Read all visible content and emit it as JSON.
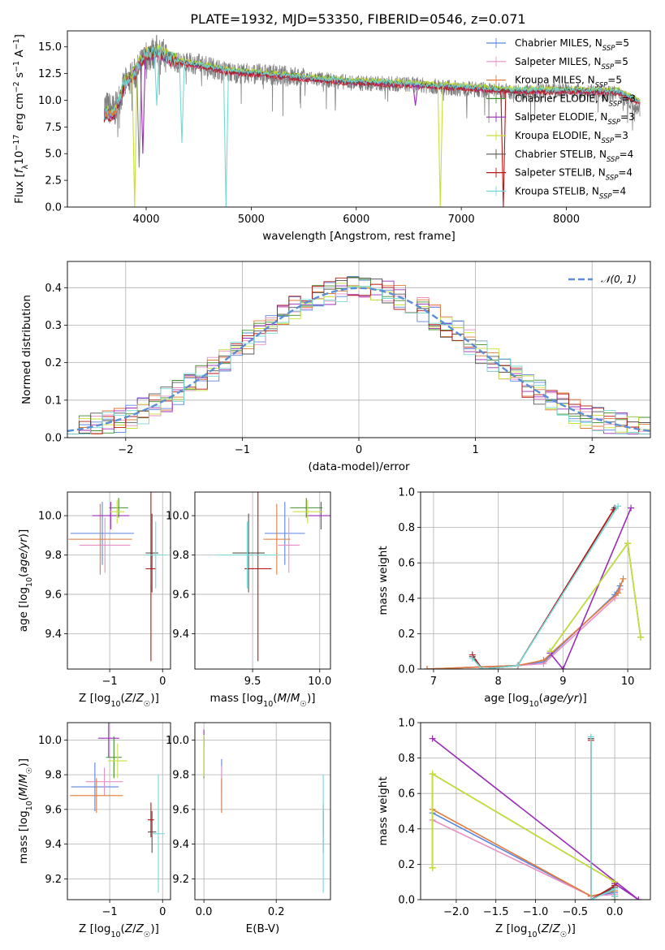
{
  "figure": {
    "title": "PLATE=1932, MJD=53350, FIBERID=0546, z=0.071"
  },
  "series": [
    {
      "name": "Chabrier MILES",
      "nssp": "5",
      "color": "#5b84e0"
    },
    {
      "name": "Salpeter MILES",
      "nssp": "5",
      "color": "#e88ec4"
    },
    {
      "name": "Kroupa MILES",
      "nssp": "5",
      "color": "#e07b39"
    },
    {
      "name": "Chabrier ELODIE",
      "nssp": "3",
      "color": "#3f8f2a"
    },
    {
      "name": "Salpeter ELODIE",
      "nssp": "3",
      "color": "#9b2db8"
    },
    {
      "name": "Kroupa ELODIE",
      "nssp": "3",
      "color": "#c6e038"
    },
    {
      "name": "Chabrier STELIB",
      "nssp": "4",
      "color": "#555555"
    },
    {
      "name": "Salpeter STELIB",
      "nssp": "4",
      "color": "#b81818"
    },
    {
      "name": "Kroupa STELIB",
      "nssp": "4",
      "color": "#74d9d6"
    }
  ],
  "legend_nssp_label": "N",
  "legend_nssp_sub": "SSP",
  "chart_data": [
    {
      "type": "line",
      "panel": "spectrum",
      "xlabel": "wavelength [Angstrom, rest frame]",
      "ylabel": "Flux [fλ 10^-17 erg cm^-2 s^-1 A^-1]",
      "xlim": [
        3250,
        8800
      ],
      "ylim": [
        0,
        16.5
      ],
      "xticks": [
        4000,
        5000,
        6000,
        7000,
        8000
      ],
      "yticks": [
        0.0,
        2.5,
        5.0,
        7.5,
        10.0,
        12.5,
        15.0
      ],
      "data_continuum": [
        [
          3600,
          9.5
        ],
        [
          3700,
          9.0
        ],
        [
          3800,
          11.5
        ],
        [
          3900,
          12.5
        ],
        [
          4000,
          14.0
        ],
        [
          4100,
          14.6
        ],
        [
          4300,
          13.5
        ],
        [
          4500,
          13.4
        ],
        [
          4800,
          12.6
        ],
        [
          5200,
          12.4
        ],
        [
          5600,
          12.0
        ],
        [
          6000,
          11.6
        ],
        [
          6500,
          11.5
        ],
        [
          7000,
          11.1
        ],
        [
          7500,
          10.8
        ],
        [
          8000,
          10.9
        ],
        [
          8500,
          10.6
        ],
        [
          8700,
          9.2
        ]
      ],
      "model_continuum": [
        [
          3600,
          8.7
        ],
        [
          3700,
          8.8
        ],
        [
          3800,
          11.6
        ],
        [
          3900,
          12.7
        ],
        [
          4000,
          14.3
        ],
        [
          4100,
          14.5
        ],
        [
          4300,
          13.6
        ],
        [
          4500,
          13.3
        ],
        [
          4800,
          12.7
        ],
        [
          5200,
          12.4
        ],
        [
          5600,
          12.0
        ],
        [
          6000,
          11.7
        ],
        [
          6500,
          11.5
        ],
        [
          7000,
          11.2
        ],
        [
          7500,
          10.9
        ],
        [
          8000,
          10.9
        ],
        [
          8500,
          10.8
        ],
        [
          8700,
          9.8
        ]
      ],
      "dips": [
        [
          3890,
          0.0,
          "#c6e038"
        ],
        [
          3933,
          3.7,
          "#888888"
        ],
        [
          3968,
          5.0,
          "#9b2db8"
        ],
        [
          4101,
          9.5,
          "#74d9d6"
        ],
        [
          4340,
          6.0,
          "#74d9d6"
        ],
        [
          4760,
          0.0,
          "#74d9d6"
        ],
        [
          6563,
          9.5,
          "#9b2db8"
        ],
        [
          6800,
          0.0,
          "#c6e038"
        ],
        [
          7400,
          0.0,
          "#b81818"
        ]
      ]
    },
    {
      "type": "bar",
      "panel": "residual_histogram",
      "xlabel": "(data-model)/error",
      "ylabel": "Normed distribution",
      "xlim": [
        -2.5,
        2.5
      ],
      "ylim": [
        0,
        0.47
      ],
      "xticks": [
        -2,
        -1,
        0,
        1,
        2
      ],
      "yticks": [
        0.0,
        0.1,
        0.2,
        0.3,
        0.4
      ],
      "reference_label": "𝒩(0, 1)",
      "reference": {
        "mean": 0,
        "sigma": 1,
        "color": "#5b8ed6"
      }
    },
    {
      "type": "scatter",
      "panel": "age_vs_Z",
      "xlabel": "Z [log10(Z/Z☉)]",
      "ylabel": "age  [log10(age/yr)]",
      "xlim": [
        -1.8,
        0.15
      ],
      "ylim": [
        9.22,
        10.12
      ],
      "xticks": [
        -1,
        0
      ],
      "yticks": [
        9.4,
        9.6,
        9.8,
        10.0
      ],
      "points": [
        {
          "s": 0,
          "x": -1.14,
          "y": 9.91,
          "xerr": 0.6,
          "yerr": 0.16
        },
        {
          "s": 1,
          "x": -1.09,
          "y": 9.85,
          "xerr": 0.48,
          "yerr": 0.14
        },
        {
          "s": 2,
          "x": -1.18,
          "y": 9.88,
          "xerr": 0.6,
          "yerr": 0.18
        },
        {
          "s": 3,
          "x": -0.83,
          "y": 10.04,
          "xerr": 0.18,
          "yerr": 0.05
        },
        {
          "s": 4,
          "x": -0.98,
          "y": 10.0,
          "xerr": 0.35,
          "yerr": 0.07
        },
        {
          "s": 5,
          "x": -0.86,
          "y": 10.02,
          "xerr": 0.14,
          "yerr": 0.06
        },
        {
          "s": 6,
          "x": -0.2,
          "y": 9.81,
          "xerr": 0.12,
          "yerr": 0.2
        },
        {
          "s": 7,
          "x": -0.22,
          "y": 9.73,
          "xerr": 0.1,
          "yerr": 0.47
        },
        {
          "s": 8,
          "x": -0.13,
          "y": 9.8,
          "xerr": 0.2,
          "yerr": 0.17
        }
      ]
    },
    {
      "type": "scatter",
      "panel": "age_vs_mass",
      "xlabel": "mass [log10(M/M☉)]",
      "ylabel": "",
      "xlim": [
        9.07,
        10.08
      ],
      "ylim": [
        9.22,
        10.12
      ],
      "xticks": [
        9.5,
        10.0
      ],
      "yticks": [
        9.4,
        9.6,
        9.8,
        10.0
      ],
      "points": [
        {
          "s": 0,
          "x": 9.74,
          "y": 9.91,
          "xerr": 0.15,
          "yerr": 0.16
        },
        {
          "s": 1,
          "x": 9.77,
          "y": 9.85,
          "xerr": 0.08,
          "yerr": 0.14
        },
        {
          "s": 2,
          "x": 9.68,
          "y": 9.88,
          "xerr": 0.1,
          "yerr": 0.18
        },
        {
          "s": 3,
          "x": 9.9,
          "y": 10.04,
          "xerr": 0.12,
          "yerr": 0.05
        },
        {
          "s": 4,
          "x": 10.01,
          "y": 10.0,
          "xerr": 0.11,
          "yerr": 0.07
        },
        {
          "s": 5,
          "x": 9.91,
          "y": 10.02,
          "xerr": 0.11,
          "yerr": 0.06
        },
        {
          "s": 6,
          "x": 9.47,
          "y": 9.81,
          "xerr": 0.12,
          "yerr": 0.2
        },
        {
          "s": 7,
          "x": 9.54,
          "y": 9.73,
          "xerr": 0.1,
          "yerr": 0.47
        },
        {
          "s": 8,
          "x": 9.46,
          "y": 9.8,
          "xerr": 0.23,
          "yerr": 0.17
        }
      ]
    },
    {
      "type": "line",
      "panel": "weight_vs_age",
      "xlabel": "age  [log10(age/yr)]",
      "ylabel": "mass weight",
      "xlim": [
        6.8,
        10.35
      ],
      "ylim": [
        0,
        1.0
      ],
      "xticks": [
        7,
        8,
        9,
        10
      ],
      "yticks": [
        0.0,
        0.2,
        0.4,
        0.6,
        0.8,
        1.0
      ],
      "series": [
        {
          "s": 0,
          "x": [
            6.9,
            8.3,
            8.7,
            9.8,
            9.88
          ],
          "y": [
            0.0,
            0.02,
            0.04,
            0.42,
            0.47
          ]
        },
        {
          "s": 1,
          "x": [
            6.9,
            8.3,
            8.7,
            9.8,
            9.88
          ],
          "y": [
            0.0,
            0.02,
            0.03,
            0.4,
            0.45
          ]
        },
        {
          "s": 2,
          "x": [
            6.9,
            8.3,
            8.7,
            9.85,
            9.93
          ],
          "y": [
            0.0,
            0.02,
            0.05,
            0.43,
            0.51
          ]
        },
        {
          "s": 3,
          "x": [
            8.8,
            10.0,
            10.2
          ],
          "y": [
            0.1,
            0.71,
            0.18
          ]
        },
        {
          "s": 4,
          "x": [
            8.8,
            9.0,
            10.05
          ],
          "y": [
            0.09,
            0.0,
            0.91
          ]
        },
        {
          "s": 5,
          "x": [
            8.8,
            10.0,
            10.2
          ],
          "y": [
            0.1,
            0.71,
            0.18
          ]
        },
        {
          "s": 6,
          "x": [
            7.6,
            7.75,
            8.3,
            9.8
          ],
          "y": [
            0.07,
            0.0,
            0.02,
            0.91
          ]
        },
        {
          "s": 7,
          "x": [
            7.6,
            7.75,
            8.3,
            9.78
          ],
          "y": [
            0.08,
            0.0,
            0.02,
            0.9
          ]
        },
        {
          "s": 8,
          "x": [
            7.6,
            7.75,
            8.3,
            9.85
          ],
          "y": [
            0.06,
            0.0,
            0.02,
            0.92
          ]
        }
      ]
    },
    {
      "type": "scatter",
      "panel": "mass_vs_Z",
      "xlabel": "Z [log10(Z/Z☉)]",
      "ylabel": "mass [log10(M/M☉)]",
      "xlim": [
        -1.8,
        0.15
      ],
      "ylim": [
        9.08,
        10.1
      ],
      "xticks": [
        -1,
        0
      ],
      "yticks": [
        9.2,
        9.4,
        9.6,
        9.8,
        10.0
      ],
      "points": [
        {
          "s": 0,
          "x": -1.28,
          "y": 9.73,
          "xerr": 0.45,
          "yerr": 0.14
        },
        {
          "s": 1,
          "x": -1.1,
          "y": 9.76,
          "xerr": 0.35,
          "yerr": 0.08
        },
        {
          "s": 2,
          "x": -1.25,
          "y": 9.68,
          "xerr": 0.5,
          "yerr": 0.1
        },
        {
          "s": 3,
          "x": -0.92,
          "y": 9.9,
          "xerr": 0.15,
          "yerr": 0.12
        },
        {
          "s": 4,
          "x": -1.02,
          "y": 10.01,
          "xerr": 0.2,
          "yerr": 0.11
        },
        {
          "s": 5,
          "x": -0.85,
          "y": 9.88,
          "xerr": 0.18,
          "yerr": 0.1
        },
        {
          "s": 6,
          "x": -0.2,
          "y": 9.47,
          "xerr": 0.08,
          "yerr": 0.12
        },
        {
          "s": 7,
          "x": -0.22,
          "y": 9.54,
          "xerr": 0.06,
          "yerr": 0.1
        },
        {
          "s": 8,
          "x": -0.08,
          "y": 9.46,
          "xerr": 0.12,
          "yerr": 0.34
        }
      ]
    },
    {
      "type": "scatter",
      "panel": "mass_vs_EBV",
      "xlabel": "E(B-V)",
      "ylabel": "",
      "xlim": [
        -0.025,
        0.35
      ],
      "ylim": [
        9.08,
        10.1
      ],
      "xticks": [
        0.0,
        0.2
      ],
      "yticks": [
        9.2,
        9.4,
        9.6,
        9.8,
        10.0
      ],
      "points": [
        {
          "s": 0,
          "x": 0.049,
          "y": 9.74,
          "xerr": 0.0,
          "yerr": 0.15
        },
        {
          "s": 1,
          "x": 0.049,
          "y": 9.77,
          "xerr": 0.0,
          "yerr": 0.08
        },
        {
          "s": 2,
          "x": 0.049,
          "y": 9.68,
          "xerr": 0.0,
          "yerr": 0.1
        },
        {
          "s": 3,
          "x": 0.0,
          "y": 9.9,
          "xerr": 0.0,
          "yerr": 0.12
        },
        {
          "s": 4,
          "x": 0.0,
          "y": 10.01,
          "xerr": 0.0,
          "yerr": 0.05
        },
        {
          "s": 5,
          "x": 0.0,
          "y": 9.91,
          "xerr": 0.0,
          "yerr": 0.12
        },
        {
          "s": 6,
          "x": 0.33,
          "y": 9.47,
          "xerr": 0.0,
          "yerr": 0.12
        },
        {
          "s": 7,
          "x": 0.33,
          "y": 9.54,
          "xerr": 0.0,
          "yerr": 0.09
        },
        {
          "s": 8,
          "x": 0.33,
          "y": 9.46,
          "xerr": 0.0,
          "yerr": 0.34
        }
      ]
    },
    {
      "type": "line",
      "panel": "weight_vs_Z",
      "xlabel": "Z [log10(Z/Z☉)]",
      "ylabel": "mass weight",
      "xlim": [
        -2.45,
        0.45
      ],
      "ylim": [
        0,
        1.0
      ],
      "xticks": [
        -2.0,
        -1.5,
        -1.0,
        -0.5,
        0.0
      ],
      "yticks": [
        0.0,
        0.2,
        0.4,
        0.6,
        0.8,
        1.0
      ],
      "series": [
        {
          "s": 0,
          "x": [
            -2.3,
            -0.3,
            0.0
          ],
          "y": [
            0.49,
            0.02,
            0.04
          ]
        },
        {
          "s": 1,
          "x": [
            -2.3,
            -0.3,
            0.0
          ],
          "y": [
            0.45,
            0.02,
            0.03
          ]
        },
        {
          "s": 2,
          "x": [
            -2.3,
            -0.3,
            0.0
          ],
          "y": [
            0.51,
            0.02,
            0.05
          ]
        },
        {
          "s": 3,
          "x": [
            -2.3,
            -2.3,
            0.0,
            0.0
          ],
          "y": [
            0.18,
            0.71,
            0.1,
            0.0
          ]
        },
        {
          "s": 4,
          "x": [
            -2.3,
            0.3,
            0.0,
            0.0
          ],
          "y": [
            0.91,
            0.0,
            0.09,
            0.0
          ]
        },
        {
          "s": 5,
          "x": [
            -2.3,
            -2.3,
            0.0,
            0.0
          ],
          "y": [
            0.18,
            0.71,
            0.1,
            0.0
          ]
        },
        {
          "s": 6,
          "x": [
            -0.3,
            -0.3,
            0.0,
            0.0
          ],
          "y": [
            0.91,
            0.0,
            0.07,
            0.02
          ]
        },
        {
          "s": 7,
          "x": [
            -0.3,
            -0.3,
            0.0,
            0.0
          ],
          "y": [
            0.9,
            0.0,
            0.08,
            0.02
          ]
        },
        {
          "s": 8,
          "x": [
            -0.3,
            -0.3,
            0.0,
            0.0
          ],
          "y": [
            0.92,
            0.0,
            0.06,
            0.02
          ]
        }
      ]
    }
  ]
}
